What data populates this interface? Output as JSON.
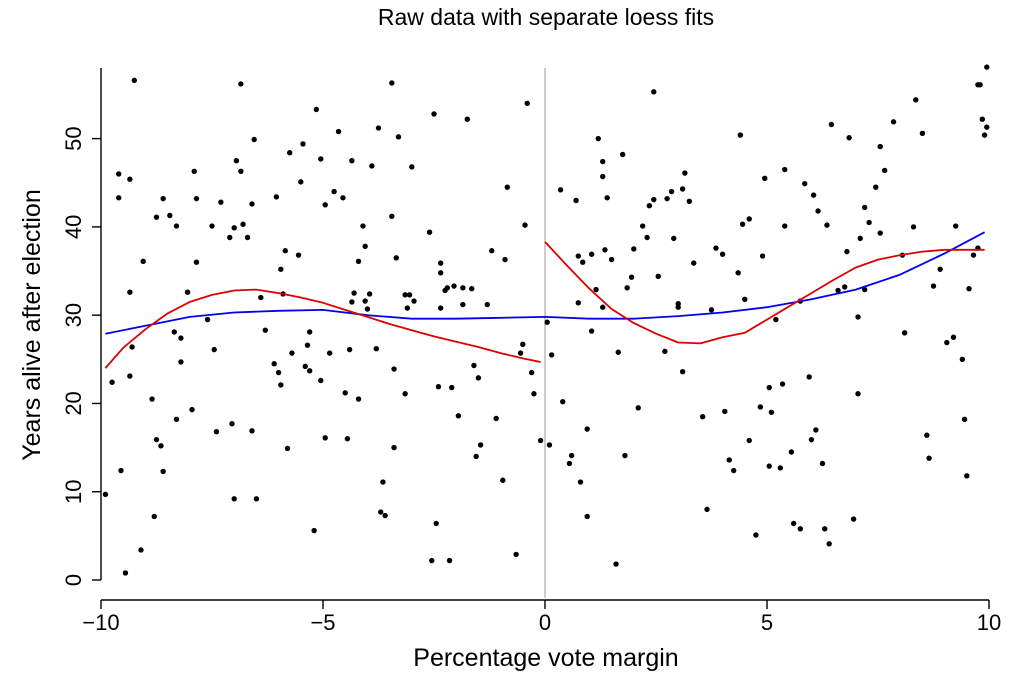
{
  "chart_data": {
    "type": "scatter",
    "title": "Raw data with separate loess fits",
    "xlabel": "Percentage vote margin",
    "ylabel": "Years alive after election",
    "xlim": [
      -10,
      10
    ],
    "ylim": [
      0,
      58
    ],
    "x_ticks": [
      -10,
      -5,
      0,
      5,
      10
    ],
    "x_tick_labels": [
      "−10",
      "−5",
      "0",
      "5",
      "10"
    ],
    "y_ticks": [
      0,
      10,
      20,
      30,
      40,
      50
    ],
    "y_tick_labels": [
      "0",
      "10",
      "20",
      "30",
      "40",
      "50"
    ],
    "grid": false,
    "vline_x": 0,
    "colors": {
      "points": "#000000",
      "blue_fit": "#0000ee",
      "red_fit": "#dd0000",
      "vline": "#aaaaaa"
    },
    "points": [
      [
        -9.9,
        9.7
      ],
      [
        -9.75,
        22.4
      ],
      [
        -9.6,
        46
      ],
      [
        -9.6,
        43.3
      ],
      [
        -9.55,
        12.4
      ],
      [
        -9.45,
        0.8
      ],
      [
        -9.35,
        45.4
      ],
      [
        -9.35,
        32.6
      ],
      [
        -9.35,
        23.1
      ],
      [
        -9.3,
        26.4
      ],
      [
        -9.25,
        56.6
      ],
      [
        -9.1,
        3.4
      ],
      [
        -9.05,
        36.1
      ],
      [
        -8.85,
        20.5
      ],
      [
        -8.8,
        7.2
      ],
      [
        -8.75,
        41.1
      ],
      [
        -8.75,
        15.9
      ],
      [
        -8.65,
        15.2
      ],
      [
        -8.6,
        12.3
      ],
      [
        -8.6,
        43.2
      ],
      [
        -8.45,
        41.3
      ],
      [
        -8.35,
        28.1
      ],
      [
        -8.3,
        40.1
      ],
      [
        -8.3,
        18.2
      ],
      [
        -8.2,
        24.7
      ],
      [
        -8.2,
        27.4
      ],
      [
        -8.05,
        32.6
      ],
      [
        -7.95,
        19.3
      ],
      [
        -7.9,
        46.3
      ],
      [
        -7.85,
        43.2
      ],
      [
        -7.85,
        36
      ],
      [
        -7.6,
        29.5
      ],
      [
        -7.5,
        40.1
      ],
      [
        -7.45,
        26.1
      ],
      [
        -7.4,
        16.8
      ],
      [
        -7.3,
        42.8
      ],
      [
        -7.1,
        38.8
      ],
      [
        -7.05,
        17.7
      ],
      [
        -7,
        9.2
      ],
      [
        -7,
        39.9
      ],
      [
        -6.95,
        47.5
      ],
      [
        -6.85,
        46.3
      ],
      [
        -6.85,
        56.2
      ],
      [
        -6.8,
        40.3
      ],
      [
        -6.7,
        38.8
      ],
      [
        -6.6,
        42.6
      ],
      [
        -6.6,
        16.9
      ],
      [
        -6.55,
        49.9
      ],
      [
        -6.5,
        9.2
      ],
      [
        -6.4,
        32
      ],
      [
        -6.3,
        28.3
      ],
      [
        -6.1,
        24.5
      ],
      [
        -6.05,
        43.4
      ],
      [
        -6,
        23.5
      ],
      [
        -5.95,
        22.1
      ],
      [
        -5.95,
        35.2
      ],
      [
        -5.9,
        32.4
      ],
      [
        -5.85,
        37.3
      ],
      [
        -5.8,
        14.9
      ],
      [
        -5.75,
        48.4
      ],
      [
        -5.7,
        25.7
      ],
      [
        -5.55,
        36.8
      ],
      [
        -5.5,
        45.1
      ],
      [
        -5.45,
        49.4
      ],
      [
        -5.4,
        24.2
      ],
      [
        -5.35,
        26.6
      ],
      [
        -5.3,
        28.1
      ],
      [
        -5.3,
        23.7
      ],
      [
        -5.2,
        5.6
      ],
      [
        -5.15,
        53.3
      ],
      [
        -5.05,
        47.7
      ],
      [
        -5.05,
        22.6
      ],
      [
        -4.95,
        16.1
      ],
      [
        -4.95,
        42.5
      ],
      [
        -4.85,
        25.7
      ],
      [
        -4.75,
        44
      ],
      [
        -4.65,
        50.8
      ],
      [
        -4.55,
        43.3
      ],
      [
        -4.5,
        21.2
      ],
      [
        -4.45,
        16
      ],
      [
        -4.4,
        26.1
      ],
      [
        -4.35,
        31.5
      ],
      [
        -4.35,
        47.5
      ],
      [
        -4.3,
        32.5
      ],
      [
        -4.2,
        36.1
      ],
      [
        -4.2,
        20.5
      ],
      [
        -4.1,
        40.1
      ],
      [
        -4.05,
        31.6
      ],
      [
        -4.05,
        37.8
      ],
      [
        -4,
        30.7
      ],
      [
        -3.95,
        32.4
      ],
      [
        -3.9,
        46.9
      ],
      [
        -3.8,
        26.2
      ],
      [
        -3.75,
        51.2
      ],
      [
        -3.7,
        7.7
      ],
      [
        -3.65,
        11.1
      ],
      [
        -3.6,
        7.3
      ],
      [
        -3.45,
        41.2
      ],
      [
        -3.45,
        56.3
      ],
      [
        -3.4,
        15
      ],
      [
        -3.4,
        23.9
      ],
      [
        -3.35,
        36.5
      ],
      [
        -3.3,
        50.2
      ],
      [
        -3.15,
        32.3
      ],
      [
        -3.15,
        21.1
      ],
      [
        -3.1,
        30.8
      ],
      [
        -3.05,
        32.3
      ],
      [
        -3.0,
        46.8
      ],
      [
        -2.95,
        31.6
      ],
      [
        -2.6,
        39.4
      ],
      [
        -2.55,
        2.2
      ],
      [
        -2.5,
        52.8
      ],
      [
        -2.45,
        6.4
      ],
      [
        -2.4,
        21.9
      ],
      [
        -2.35,
        30.8
      ],
      [
        -2.35,
        35.9
      ],
      [
        -2.35,
        34.8
      ],
      [
        -2.25,
        32.8
      ],
      [
        -2.2,
        33.1
      ],
      [
        -2.15,
        2.2
      ],
      [
        -2.1,
        21.8
      ],
      [
        -2.05,
        33.3
      ],
      [
        -1.95,
        18.6
      ],
      [
        -1.85,
        31.2
      ],
      [
        -1.85,
        33.1
      ],
      [
        -1.75,
        52.2
      ],
      [
        -1.65,
        33
      ],
      [
        -1.6,
        24.3
      ],
      [
        -1.55,
        14
      ],
      [
        -1.5,
        22.9
      ],
      [
        -1.45,
        15.3
      ],
      [
        -1.3,
        31.2
      ],
      [
        -1.2,
        37.3
      ],
      [
        -1.1,
        18.3
      ],
      [
        -0.95,
        11.3
      ],
      [
        -0.9,
        36.3
      ],
      [
        -0.85,
        44.5
      ],
      [
        -0.65,
        2.9
      ],
      [
        -0.55,
        25.7
      ],
      [
        -0.5,
        26.7
      ],
      [
        -0.45,
        40.2
      ],
      [
        -0.4,
        54
      ],
      [
        -0.3,
        23.5
      ],
      [
        -0.25,
        21.1
      ],
      [
        -0.1,
        15.8
      ],
      [
        0.05,
        29.2
      ],
      [
        0.1,
        15.3
      ],
      [
        0.15,
        25.5
      ],
      [
        0.35,
        44.2
      ],
      [
        0.4,
        20.2
      ],
      [
        0.55,
        13.2
      ],
      [
        0.6,
        14.1
      ],
      [
        0.7,
        43
      ],
      [
        0.75,
        36.7
      ],
      [
        0.75,
        31.4
      ],
      [
        0.8,
        11.1
      ],
      [
        0.85,
        36
      ],
      [
        0.95,
        17.1
      ],
      [
        0.95,
        7.2
      ],
      [
        1.05,
        28.2
      ],
      [
        1.05,
        36.9
      ],
      [
        1.15,
        32.9
      ],
      [
        1.2,
        50
      ],
      [
        1.3,
        47.4
      ],
      [
        1.3,
        45.7
      ],
      [
        1.3,
        30.9
      ],
      [
        1.35,
        37.4
      ],
      [
        1.4,
        43.3
      ],
      [
        1.5,
        36.3
      ],
      [
        1.6,
        1.8
      ],
      [
        1.65,
        25.8
      ],
      [
        1.75,
        48.2
      ],
      [
        1.8,
        14.1
      ],
      [
        1.85,
        33.1
      ],
      [
        1.95,
        34.3
      ],
      [
        2.0,
        37.5
      ],
      [
        2.1,
        19.5
      ],
      [
        2.2,
        40.1
      ],
      [
        2.3,
        38.8
      ],
      [
        2.35,
        42.4
      ],
      [
        2.45,
        43.1
      ],
      [
        2.45,
        55.3
      ],
      [
        2.55,
        34.4
      ],
      [
        2.7,
        25.9
      ],
      [
        2.75,
        43.2
      ],
      [
        2.85,
        44
      ],
      [
        2.9,
        38.7
      ],
      [
        3.0,
        31.3
      ],
      [
        3.0,
        30.9
      ],
      [
        3.1,
        23.6
      ],
      [
        3.1,
        44.3
      ],
      [
        3.15,
        46.1
      ],
      [
        3.25,
        42.9
      ],
      [
        3.35,
        35.9
      ],
      [
        3.55,
        18.5
      ],
      [
        3.65,
        8
      ],
      [
        3.75,
        30.6
      ],
      [
        3.85,
        37.6
      ],
      [
        4.0,
        36.9
      ],
      [
        4.05,
        19.1
      ],
      [
        4.15,
        13.6
      ],
      [
        4.25,
        12.4
      ],
      [
        4.35,
        34.8
      ],
      [
        4.4,
        50.4
      ],
      [
        4.45,
        40.3
      ],
      [
        4.5,
        31.8
      ],
      [
        4.6,
        40.9
      ],
      [
        4.6,
        15.8
      ],
      [
        4.75,
        5.1
      ],
      [
        4.85,
        19.6
      ],
      [
        4.9,
        36.7
      ],
      [
        4.95,
        45.5
      ],
      [
        5.05,
        21.8
      ],
      [
        5.05,
        12.9
      ],
      [
        5.1,
        19
      ],
      [
        5.2,
        29.5
      ],
      [
        5.3,
        12.7
      ],
      [
        5.35,
        22.2
      ],
      [
        5.4,
        40.1
      ],
      [
        5.4,
        46.5
      ],
      [
        5.55,
        14.5
      ],
      [
        5.6,
        6.4
      ],
      [
        5.75,
        5.8
      ],
      [
        5.75,
        31.6
      ],
      [
        5.85,
        44.9
      ],
      [
        5.95,
        23
      ],
      [
        6.0,
        15.9
      ],
      [
        6.05,
        43.6
      ],
      [
        6.1,
        17
      ],
      [
        6.15,
        41.8
      ],
      [
        6.25,
        13.2
      ],
      [
        6.3,
        5.8
      ],
      [
        6.35,
        40.2
      ],
      [
        6.4,
        4.1
      ],
      [
        6.45,
        51.6
      ],
      [
        6.6,
        32.8
      ],
      [
        6.75,
        33.2
      ],
      [
        6.8,
        37.2
      ],
      [
        6.85,
        50.1
      ],
      [
        6.95,
        6.9
      ],
      [
        7.05,
        21.1
      ],
      [
        7.05,
        29.8
      ],
      [
        7.1,
        38.7
      ],
      [
        7.2,
        32.9
      ],
      [
        7.2,
        42.2
      ],
      [
        7.3,
        40.5
      ],
      [
        7.45,
        44.5
      ],
      [
        7.55,
        39.3
      ],
      [
        7.55,
        49.1
      ],
      [
        7.65,
        46.4
      ],
      [
        7.85,
        51.9
      ],
      [
        8.05,
        36.8
      ],
      [
        8.1,
        28
      ],
      [
        8.3,
        40
      ],
      [
        8.35,
        54.4
      ],
      [
        8.5,
        50.6
      ],
      [
        8.6,
        16.4
      ],
      [
        8.65,
        13.8
      ],
      [
        8.75,
        33.3
      ],
      [
        8.9,
        35.2
      ],
      [
        9.05,
        26.9
      ],
      [
        9.2,
        27.5
      ],
      [
        9.25,
        40.1
      ],
      [
        9.4,
        25
      ],
      [
        9.45,
        18.2
      ],
      [
        9.5,
        11.8
      ],
      [
        9.55,
        33
      ],
      [
        9.65,
        36.8
      ],
      [
        9.75,
        56.1
      ],
      [
        9.75,
        37.6
      ],
      [
        9.8,
        56.1
      ],
      [
        9.85,
        52.2
      ],
      [
        9.9,
        50.4
      ],
      [
        9.95,
        51.3
      ],
      [
        9.95,
        58.1
      ]
    ],
    "series": [
      {
        "color": "#0000ee",
        "x": [
          -9.9,
          -9,
          -8,
          -7,
          -6,
          -5,
          -4,
          -3,
          -2,
          -1,
          0,
          1,
          2,
          3,
          4,
          5,
          6,
          7,
          8,
          9,
          9.9
        ],
        "y": [
          27.9,
          28.8,
          29.8,
          30.3,
          30.5,
          30.6,
          30.0,
          29.6,
          29.6,
          29.7,
          29.8,
          29.6,
          29.6,
          29.9,
          30.3,
          30.9,
          31.8,
          32.9,
          34.6,
          37.0,
          39.4
        ]
      },
      {
        "color": "#dd0000",
        "x": [
          -9.9,
          -9.5,
          -9,
          -8.5,
          -8,
          -7.5,
          -7,
          -6.5,
          -6,
          -5.5,
          -5,
          -4.5,
          -4,
          -3.5,
          -3,
          -2.5,
          -2,
          -1.5,
          -1,
          -0.5,
          -0.1
        ],
        "y": [
          24.0,
          26.3,
          28.4,
          30.2,
          31.5,
          32.3,
          32.8,
          32.9,
          32.5,
          32.0,
          31.4,
          30.6,
          29.8,
          29.0,
          28.3,
          27.6,
          27.0,
          26.4,
          25.7,
          25.1,
          24.7
        ]
      },
      {
        "color": "#dd0000",
        "x": [
          0.0,
          0.5,
          1,
          1.5,
          2,
          2.5,
          3,
          3.5,
          4,
          4.5,
          5,
          5.5,
          6,
          6.5,
          7,
          7.5,
          8,
          8.5,
          9,
          9.5,
          9.9
        ],
        "y": [
          38.3,
          35.6,
          33.0,
          30.7,
          29.1,
          27.9,
          26.9,
          26.8,
          27.5,
          28.0,
          29.5,
          31.0,
          32.5,
          34.0,
          35.4,
          36.3,
          36.8,
          37.2,
          37.4,
          37.4,
          37.4
        ]
      }
    ]
  }
}
